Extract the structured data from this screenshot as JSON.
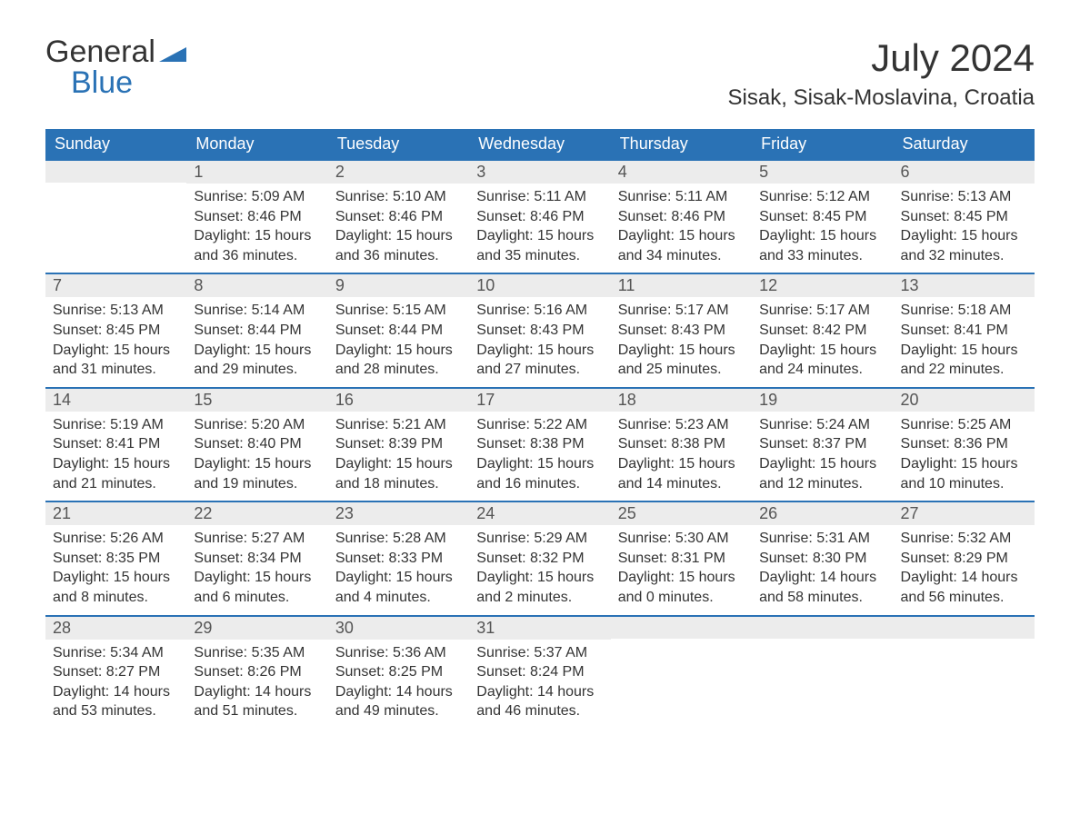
{
  "brand": {
    "word1": "General",
    "word2": "Blue",
    "word1_color": "#333333",
    "word2_color": "#2a72b5",
    "mark_color": "#2a72b5"
  },
  "header": {
    "month_title": "July 2024",
    "location": "Sisak, Sisak-Moslavina, Croatia"
  },
  "styling": {
    "header_bg": "#2a72b5",
    "header_text": "#ffffff",
    "daynum_bg": "#ececec",
    "row_divider": "#2a72b5",
    "body_text": "#333333",
    "page_bg": "#ffffff",
    "th_fontsize": 18,
    "daynum_fontsize": 18,
    "body_fontsize": 16,
    "title_fontsize": 42,
    "location_fontsize": 24
  },
  "weekdays": [
    "Sunday",
    "Monday",
    "Tuesday",
    "Wednesday",
    "Thursday",
    "Friday",
    "Saturday"
  ],
  "weeks": [
    [
      {
        "day": "",
        "sunrise": "",
        "sunset": "",
        "daylight": ""
      },
      {
        "day": "1",
        "sunrise": "Sunrise: 5:09 AM",
        "sunset": "Sunset: 8:46 PM",
        "daylight": "Daylight: 15 hours and 36 minutes."
      },
      {
        "day": "2",
        "sunrise": "Sunrise: 5:10 AM",
        "sunset": "Sunset: 8:46 PM",
        "daylight": "Daylight: 15 hours and 36 minutes."
      },
      {
        "day": "3",
        "sunrise": "Sunrise: 5:11 AM",
        "sunset": "Sunset: 8:46 PM",
        "daylight": "Daylight: 15 hours and 35 minutes."
      },
      {
        "day": "4",
        "sunrise": "Sunrise: 5:11 AM",
        "sunset": "Sunset: 8:46 PM",
        "daylight": "Daylight: 15 hours and 34 minutes."
      },
      {
        "day": "5",
        "sunrise": "Sunrise: 5:12 AM",
        "sunset": "Sunset: 8:45 PM",
        "daylight": "Daylight: 15 hours and 33 minutes."
      },
      {
        "day": "6",
        "sunrise": "Sunrise: 5:13 AM",
        "sunset": "Sunset: 8:45 PM",
        "daylight": "Daylight: 15 hours and 32 minutes."
      }
    ],
    [
      {
        "day": "7",
        "sunrise": "Sunrise: 5:13 AM",
        "sunset": "Sunset: 8:45 PM",
        "daylight": "Daylight: 15 hours and 31 minutes."
      },
      {
        "day": "8",
        "sunrise": "Sunrise: 5:14 AM",
        "sunset": "Sunset: 8:44 PM",
        "daylight": "Daylight: 15 hours and 29 minutes."
      },
      {
        "day": "9",
        "sunrise": "Sunrise: 5:15 AM",
        "sunset": "Sunset: 8:44 PM",
        "daylight": "Daylight: 15 hours and 28 minutes."
      },
      {
        "day": "10",
        "sunrise": "Sunrise: 5:16 AM",
        "sunset": "Sunset: 8:43 PM",
        "daylight": "Daylight: 15 hours and 27 minutes."
      },
      {
        "day": "11",
        "sunrise": "Sunrise: 5:17 AM",
        "sunset": "Sunset: 8:43 PM",
        "daylight": "Daylight: 15 hours and 25 minutes."
      },
      {
        "day": "12",
        "sunrise": "Sunrise: 5:17 AM",
        "sunset": "Sunset: 8:42 PM",
        "daylight": "Daylight: 15 hours and 24 minutes."
      },
      {
        "day": "13",
        "sunrise": "Sunrise: 5:18 AM",
        "sunset": "Sunset: 8:41 PM",
        "daylight": "Daylight: 15 hours and 22 minutes."
      }
    ],
    [
      {
        "day": "14",
        "sunrise": "Sunrise: 5:19 AM",
        "sunset": "Sunset: 8:41 PM",
        "daylight": "Daylight: 15 hours and 21 minutes."
      },
      {
        "day": "15",
        "sunrise": "Sunrise: 5:20 AM",
        "sunset": "Sunset: 8:40 PM",
        "daylight": "Daylight: 15 hours and 19 minutes."
      },
      {
        "day": "16",
        "sunrise": "Sunrise: 5:21 AM",
        "sunset": "Sunset: 8:39 PM",
        "daylight": "Daylight: 15 hours and 18 minutes."
      },
      {
        "day": "17",
        "sunrise": "Sunrise: 5:22 AM",
        "sunset": "Sunset: 8:38 PM",
        "daylight": "Daylight: 15 hours and 16 minutes."
      },
      {
        "day": "18",
        "sunrise": "Sunrise: 5:23 AM",
        "sunset": "Sunset: 8:38 PM",
        "daylight": "Daylight: 15 hours and 14 minutes."
      },
      {
        "day": "19",
        "sunrise": "Sunrise: 5:24 AM",
        "sunset": "Sunset: 8:37 PM",
        "daylight": "Daylight: 15 hours and 12 minutes."
      },
      {
        "day": "20",
        "sunrise": "Sunrise: 5:25 AM",
        "sunset": "Sunset: 8:36 PM",
        "daylight": "Daylight: 15 hours and 10 minutes."
      }
    ],
    [
      {
        "day": "21",
        "sunrise": "Sunrise: 5:26 AM",
        "sunset": "Sunset: 8:35 PM",
        "daylight": "Daylight: 15 hours and 8 minutes."
      },
      {
        "day": "22",
        "sunrise": "Sunrise: 5:27 AM",
        "sunset": "Sunset: 8:34 PM",
        "daylight": "Daylight: 15 hours and 6 minutes."
      },
      {
        "day": "23",
        "sunrise": "Sunrise: 5:28 AM",
        "sunset": "Sunset: 8:33 PM",
        "daylight": "Daylight: 15 hours and 4 minutes."
      },
      {
        "day": "24",
        "sunrise": "Sunrise: 5:29 AM",
        "sunset": "Sunset: 8:32 PM",
        "daylight": "Daylight: 15 hours and 2 minutes."
      },
      {
        "day": "25",
        "sunrise": "Sunrise: 5:30 AM",
        "sunset": "Sunset: 8:31 PM",
        "daylight": "Daylight: 15 hours and 0 minutes."
      },
      {
        "day": "26",
        "sunrise": "Sunrise: 5:31 AM",
        "sunset": "Sunset: 8:30 PM",
        "daylight": "Daylight: 14 hours and 58 minutes."
      },
      {
        "day": "27",
        "sunrise": "Sunrise: 5:32 AM",
        "sunset": "Sunset: 8:29 PM",
        "daylight": "Daylight: 14 hours and 56 minutes."
      }
    ],
    [
      {
        "day": "28",
        "sunrise": "Sunrise: 5:34 AM",
        "sunset": "Sunset: 8:27 PM",
        "daylight": "Daylight: 14 hours and 53 minutes."
      },
      {
        "day": "29",
        "sunrise": "Sunrise: 5:35 AM",
        "sunset": "Sunset: 8:26 PM",
        "daylight": "Daylight: 14 hours and 51 minutes."
      },
      {
        "day": "30",
        "sunrise": "Sunrise: 5:36 AM",
        "sunset": "Sunset: 8:25 PM",
        "daylight": "Daylight: 14 hours and 49 minutes."
      },
      {
        "day": "31",
        "sunrise": "Sunrise: 5:37 AM",
        "sunset": "Sunset: 8:24 PM",
        "daylight": "Daylight: 14 hours and 46 minutes."
      },
      {
        "day": "",
        "sunrise": "",
        "sunset": "",
        "daylight": ""
      },
      {
        "day": "",
        "sunrise": "",
        "sunset": "",
        "daylight": ""
      },
      {
        "day": "",
        "sunrise": "",
        "sunset": "",
        "daylight": ""
      }
    ]
  ]
}
